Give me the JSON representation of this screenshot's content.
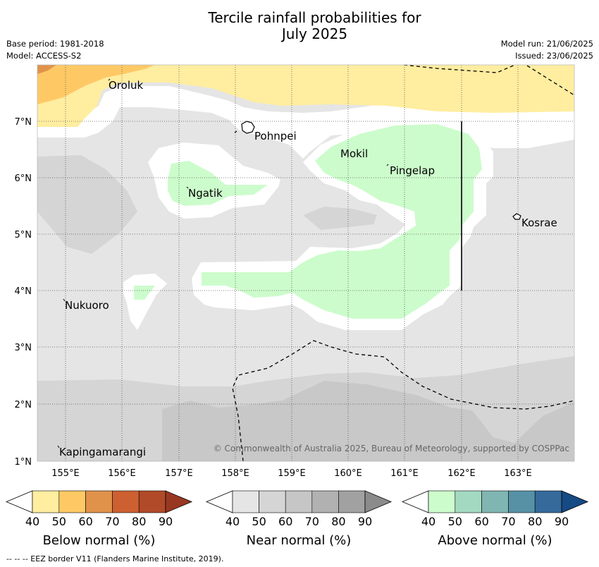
{
  "title_line1": "Tercile rainfall probabilities for",
  "title_line2": "July 2025",
  "meta_left": {
    "base_period": "Base period: 1981-2018",
    "model": "Model: ACCESS-S2"
  },
  "meta_right": {
    "model_run": "Model run: 21/06/2025",
    "issued": "Issued: 23/06/2025"
  },
  "places": {
    "oroluk": "Oroluk",
    "pohnpei": "Pohnpei",
    "mokil": "Mokil",
    "pingelap": "Pingelap",
    "ngatik": "Ngatik",
    "kosrae": "Kosrae",
    "nukuoro": "Nukuoro",
    "kapingamarangi": "Kapingamarangi"
  },
  "lon_labels": [
    "155°E",
    "156°E",
    "157°E",
    "158°E",
    "159°E",
    "160°E",
    "161°E",
    "162°E",
    "163°E"
  ],
  "lat_labels": [
    "7°N",
    "6°N",
    "5°N",
    "4°N",
    "3°N",
    "2°N",
    "1°N"
  ],
  "copyright": "© Commonwealth of Australia 2025, Bureau of Meteorology, supported by COSPPac",
  "colorbars": [
    {
      "title": "Below normal (%)",
      "ticks": [
        "40",
        "50",
        "60",
        "70",
        "80",
        "90"
      ],
      "colors": [
        "#ffeda0",
        "#fec965",
        "#e0924a",
        "#cc6031",
        "#b14a28",
        "#993822"
      ]
    },
    {
      "title": "Near normal (%)",
      "ticks": [
        "40",
        "50",
        "60",
        "70",
        "80",
        "90"
      ],
      "colors": [
        "#e5e5e5",
        "#d5d5d5",
        "#c6c6c6",
        "#b1b1b1",
        "#a1a1a1",
        "#8b8b8b"
      ]
    },
    {
      "title": "Above normal (%)",
      "ticks": [
        "40",
        "50",
        "60",
        "70",
        "80",
        "90"
      ],
      "colors": [
        "#ccfccc",
        "#a4d9c1",
        "#80b6b2",
        "#5791a6",
        "#356a9b",
        "#164a83"
      ]
    }
  ],
  "footer": "--  --  -- EEZ border V11 (Flanders Marine Institute, 2019)."
}
